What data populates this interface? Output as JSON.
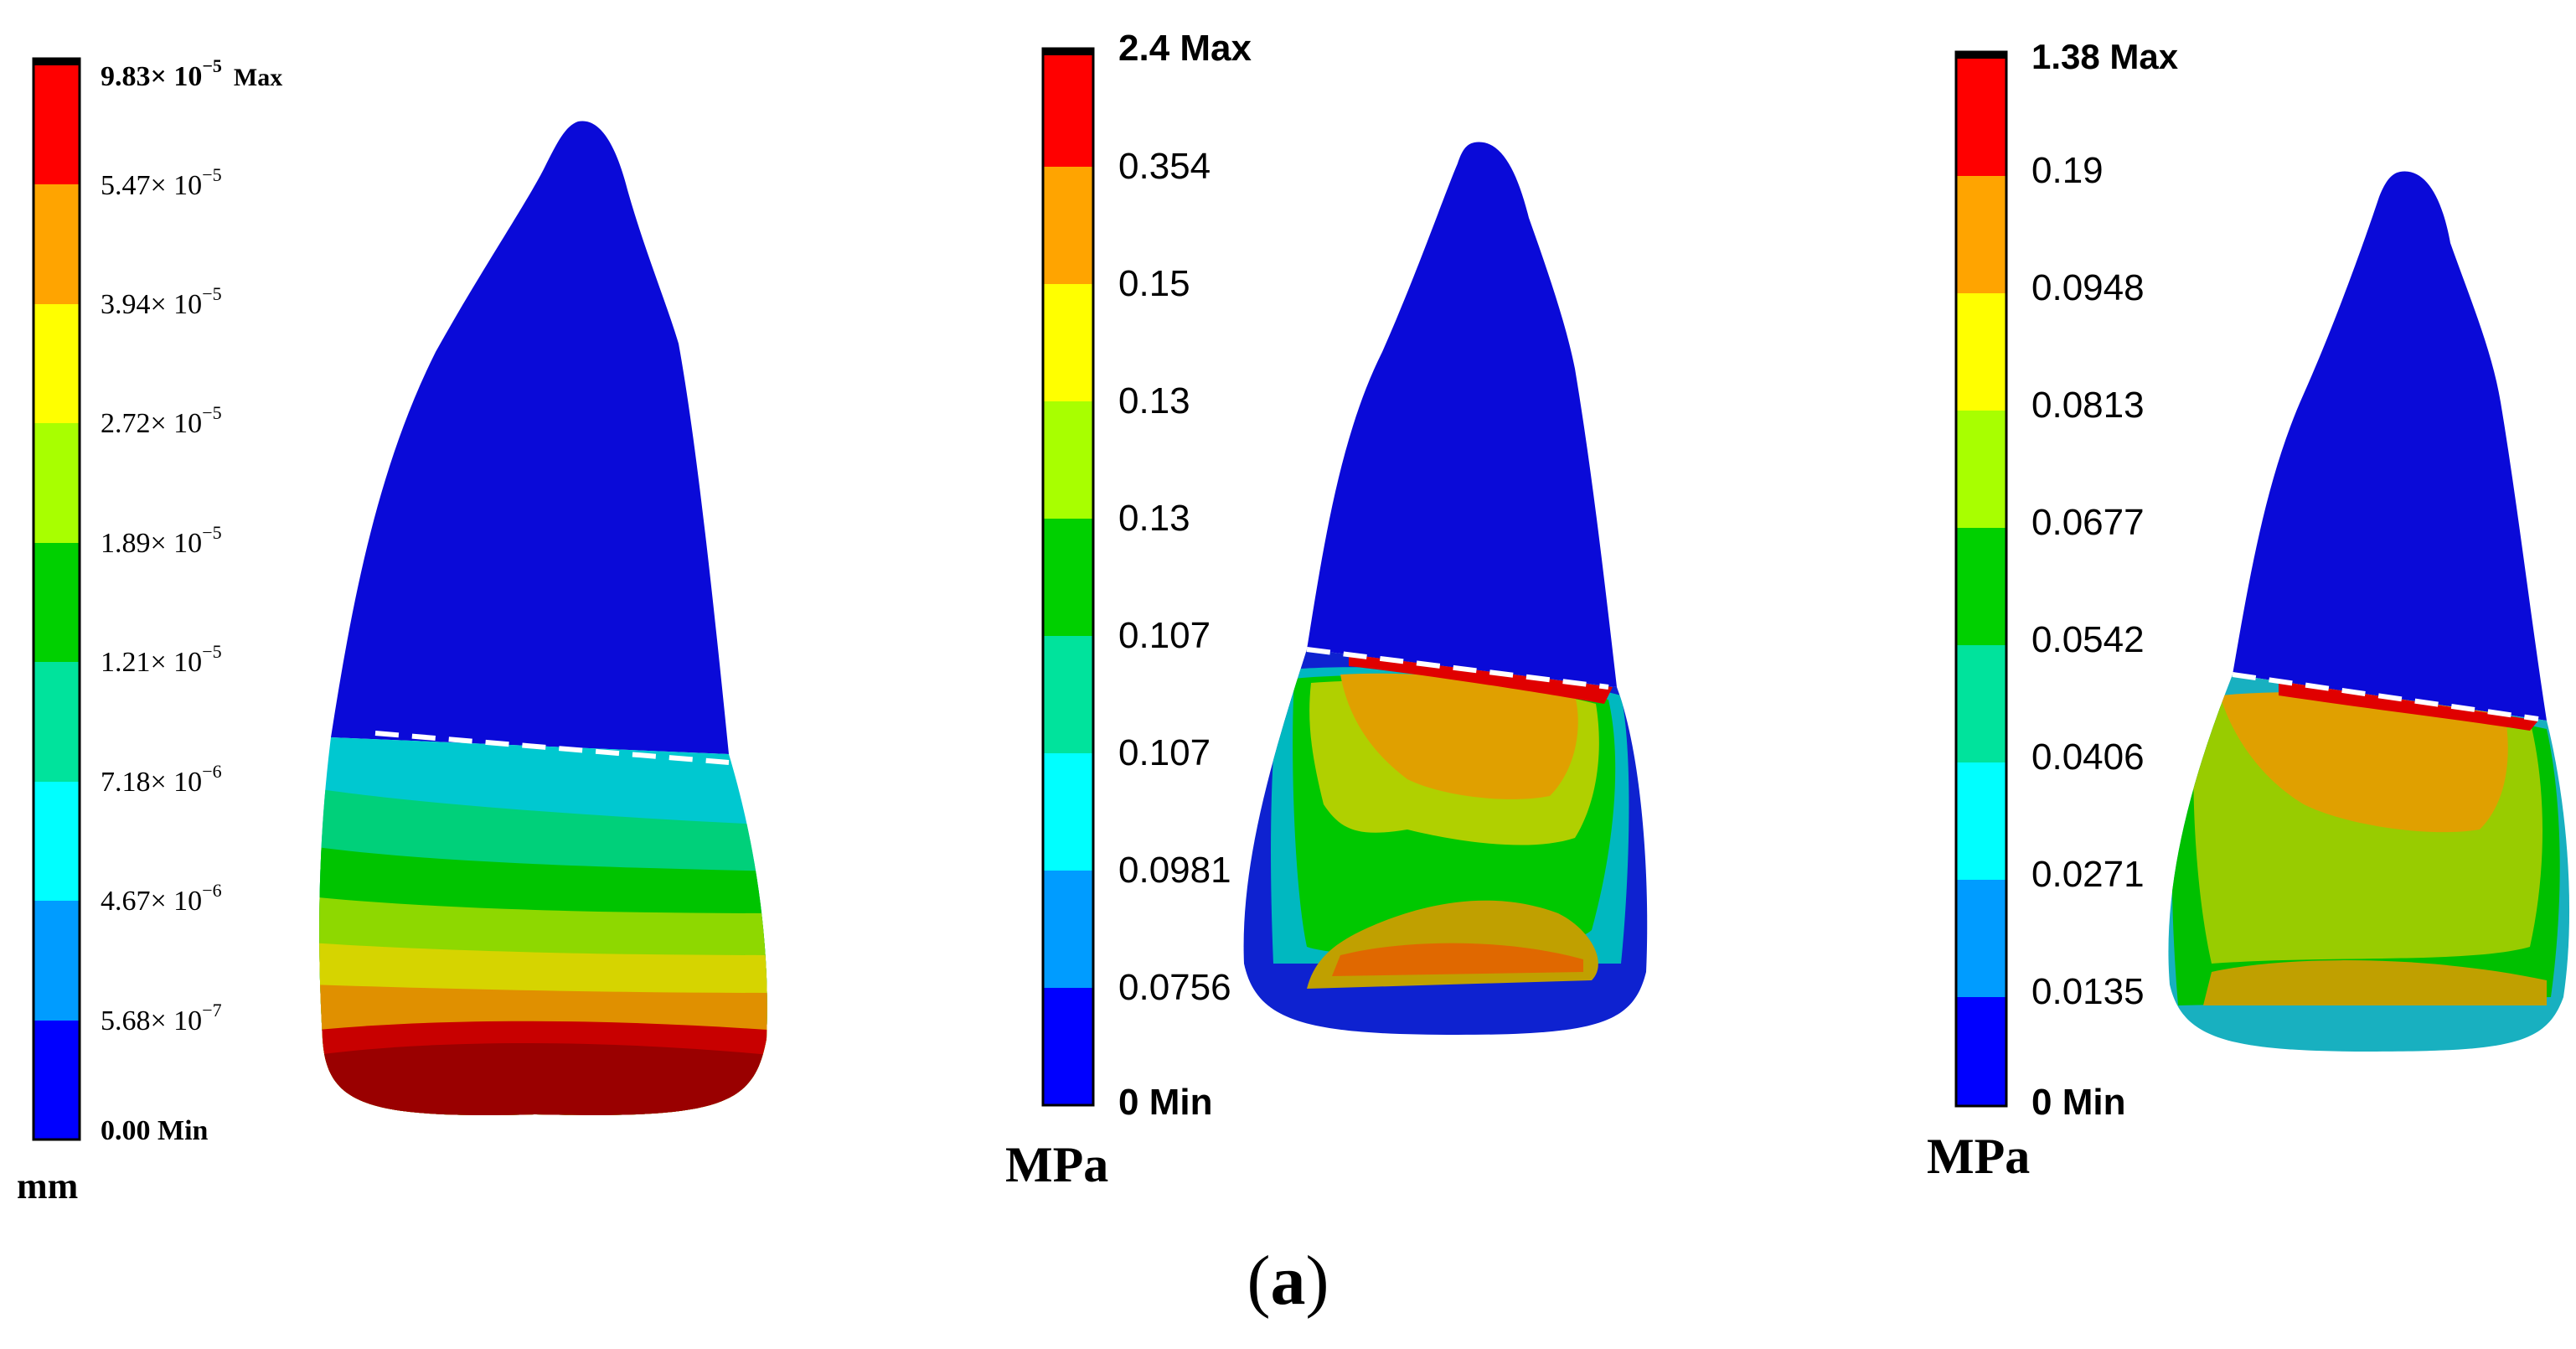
{
  "colors": [
    "#0000ff",
    "#009cff",
    "#00ffff",
    "#00e39c",
    "#00d000",
    "#a8ff00",
    "#ffff00",
    "#ffa400",
    "#ff0000"
  ],
  "panels": [
    {
      "id": "displacement",
      "unit": "mm",
      "top_label": "9.83× 10",
      "top_exp": "−5",
      "top_suffix": "Max",
      "labels": [
        {
          "text": "5.47× 10",
          "exp": "−5"
        },
        {
          "text": "3.94× 10",
          "exp": "−5"
        },
        {
          "text": "2.72× 10",
          "exp": "−5"
        },
        {
          "text": "1.89× 10",
          "exp": "−5"
        },
        {
          "text": "1.21× 10",
          "exp": "−5"
        },
        {
          "text": "7.18× 10",
          "exp": "−6"
        },
        {
          "text": "4.67× 10",
          "exp": "−6"
        },
        {
          "text": "5.68× 10",
          "exp": "−7"
        }
      ],
      "bottom_label": "0.00 Min"
    },
    {
      "id": "stress-1",
      "unit": "MPa",
      "top_label": "2.4 Max",
      "labels": [
        {
          "text": "0.354"
        },
        {
          "text": "0.15"
        },
        {
          "text": "0.13"
        },
        {
          "text": "0.13"
        },
        {
          "text": "0.107"
        },
        {
          "text": "0.107"
        },
        {
          "text": "0.0981"
        },
        {
          "text": "0.0756"
        }
      ],
      "bottom_label": "0 Min"
    },
    {
      "id": "stress-2",
      "unit": "MPa",
      "top_label": "1.38 Max",
      "labels": [
        {
          "text": "0.19"
        },
        {
          "text": "0.0948"
        },
        {
          "text": "0.0813"
        },
        {
          "text": "0.0677"
        },
        {
          "text": "0.0542"
        },
        {
          "text": "0.0406"
        },
        {
          "text": "0.0271"
        },
        {
          "text": "0.0135"
        }
      ],
      "bottom_label": "0 Min"
    }
  ],
  "caption": {
    "open": "(",
    "letter": "a",
    "close": ")"
  }
}
